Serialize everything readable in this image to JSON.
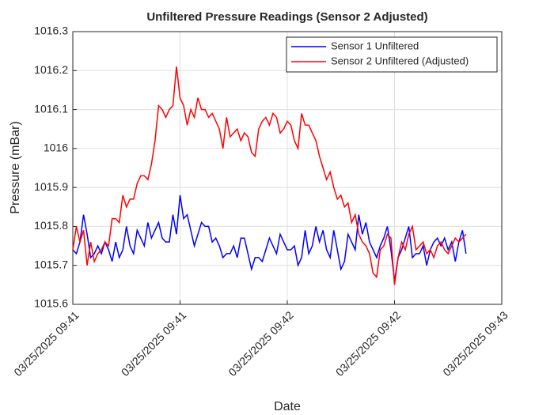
{
  "chart_data": {
    "type": "line",
    "title": "Unfiltered Pressure Readings (Sensor 2 Adjusted)",
    "xlabel": "Date",
    "ylabel": "Pressure (mBar)",
    "x": [
      0,
      1,
      2,
      3,
      4,
      5,
      6,
      7,
      8,
      9,
      10,
      11,
      12,
      13,
      14,
      15,
      16,
      17,
      18,
      19,
      20,
      21,
      22,
      23,
      24,
      25,
      26,
      27,
      28,
      29,
      30,
      31,
      32,
      33,
      34,
      35,
      36,
      37,
      38,
      39,
      40,
      41,
      42,
      43,
      44,
      45,
      46,
      47,
      48,
      49,
      50,
      51,
      52,
      53,
      54,
      55,
      56,
      57,
      58,
      59,
      60,
      61,
      62,
      63,
      64,
      65,
      66,
      67,
      68,
      69,
      70,
      71,
      72,
      73,
      74,
      75,
      76,
      77,
      78,
      79,
      80,
      81,
      82,
      83,
      84,
      85,
      86,
      87,
      88,
      89,
      90,
      91,
      92,
      93,
      94,
      95,
      96,
      97,
      98,
      99,
      100,
      101,
      102,
      103,
      104,
      105,
      106,
      107,
      108,
      109,
      110
    ],
    "series": [
      {
        "name": "Sensor 1 Unfiltered",
        "color": "#0000ff",
        "values": [
          1015.74,
          1015.73,
          1015.76,
          1015.83,
          1015.78,
          1015.72,
          1015.73,
          1015.75,
          1015.73,
          1015.76,
          1015.74,
          1015.71,
          1015.76,
          1015.72,
          1015.74,
          1015.8,
          1015.75,
          1015.73,
          1015.79,
          1015.77,
          1015.75,
          1015.81,
          1015.77,
          1015.79,
          1015.81,
          1015.77,
          1015.76,
          1015.76,
          1015.83,
          1015.78,
          1015.88,
          1015.82,
          1015.83,
          1015.79,
          1015.75,
          1015.78,
          1015.81,
          1015.8,
          1015.8,
          1015.76,
          1015.77,
          1015.75,
          1015.72,
          1015.73,
          1015.73,
          1015.75,
          1015.72,
          1015.77,
          1015.77,
          1015.73,
          1015.69,
          1015.72,
          1015.72,
          1015.71,
          1015.74,
          1015.77,
          1015.75,
          1015.73,
          1015.78,
          1015.76,
          1015.74,
          1015.74,
          1015.75,
          1015.7,
          1015.72,
          1015.79,
          1015.73,
          1015.75,
          1015.8,
          1015.76,
          1015.79,
          1015.74,
          1015.72,
          1015.79,
          1015.74,
          1015.69,
          1015.71,
          1015.78,
          1015.76,
          1015.74,
          1015.83,
          1015.78,
          1015.81,
          1015.76,
          1015.74,
          1015.72,
          1015.75,
          1015.77,
          1015.8,
          1015.74,
          1015.66,
          1015.72,
          1015.74,
          1015.77,
          1015.8,
          1015.72,
          1015.73,
          1015.73,
          1015.75,
          1015.7,
          1015.74,
          1015.76,
          1015.77,
          1015.75,
          1015.77,
          1015.74,
          1015.76,
          1015.71,
          1015.76,
          1015.79,
          1015.73
        ]
      },
      {
        "name": "Sensor 2 Unfiltered (Adjusted)",
        "color": "#ff0000",
        "values": [
          1015.74,
          1015.8,
          1015.76,
          1015.79,
          1015.7,
          1015.76,
          1015.71,
          1015.73,
          1015.74,
          1015.76,
          1015.75,
          1015.82,
          1015.82,
          1015.81,
          1015.88,
          1015.85,
          1015.87,
          1015.87,
          1015.91,
          1015.93,
          1015.93,
          1015.92,
          1015.96,
          1016.02,
          1016.11,
          1016.1,
          1016.08,
          1016.1,
          1016.11,
          1016.21,
          1016.13,
          1016.11,
          1016.06,
          1016.1,
          1016.08,
          1016.13,
          1016.1,
          1016.1,
          1016.08,
          1016.09,
          1016.07,
          1016.05,
          1016.0,
          1016.08,
          1016.03,
          1016.04,
          1016.05,
          1016.02,
          1016.04,
          1016.03,
          1015.99,
          1015.98,
          1016.05,
          1016.07,
          1016.08,
          1016.06,
          1016.09,
          1016.08,
          1016.04,
          1016.05,
          1016.07,
          1016.06,
          1016.02,
          1016.0,
          1016.09,
          1016.06,
          1016.06,
          1016.04,
          1016.02,
          1015.98,
          1015.95,
          1015.92,
          1015.94,
          1015.9,
          1015.87,
          1015.88,
          1015.85,
          1015.86,
          1015.81,
          1015.83,
          1015.78,
          1015.76,
          1015.75,
          1015.73,
          1015.68,
          1015.67,
          1015.74,
          1015.75,
          1015.78,
          1015.77,
          1015.65,
          1015.72,
          1015.76,
          1015.74,
          1015.78,
          1015.8,
          1015.74,
          1015.75,
          1015.76,
          1015.73,
          1015.74,
          1015.72,
          1015.75,
          1015.76,
          1015.74,
          1015.73,
          1015.75,
          1015.77,
          1015.76,
          1015.77,
          1015.78
        ]
      }
    ],
    "xlim": [
      0,
      120
    ],
    "xticks": [
      {
        "value": 0,
        "label": "03/25/2025 09:41"
      },
      {
        "value": 30,
        "label": "03/25/2025 09:41"
      },
      {
        "value": 60,
        "label": "03/25/2025 09:42"
      },
      {
        "value": 90,
        "label": "03/25/2025 09:42"
      },
      {
        "value": 120,
        "label": "03/25/2025 09:43"
      }
    ],
    "ylim": [
      1015.6,
      1016.3
    ],
    "yticks": [
      1015.6,
      1015.7,
      1015.8,
      1015.9,
      1016,
      1016.1,
      1016.2,
      1016.3
    ],
    "grid": true,
    "legend": "northeast"
  }
}
